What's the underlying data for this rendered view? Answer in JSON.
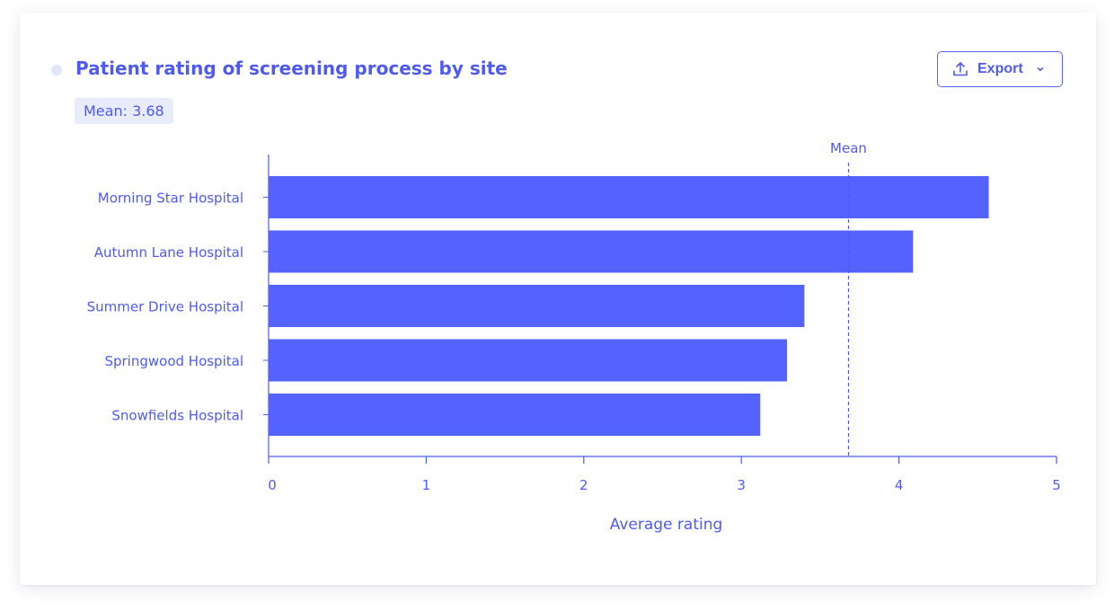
{
  "header": {
    "title": "Patient rating of screening process by site",
    "mean_badge": "Mean: 3.68",
    "export_label": "Export"
  },
  "colors": {
    "bar": "#5563fe",
    "accent": "#4f5bf0",
    "badge_bg": "#e9ecfd"
  },
  "chart_data": {
    "type": "bar",
    "orientation": "horizontal",
    "categories": [
      "Morning Star Hospital",
      "Autumn Lane Hospital",
      "Summer Drive Hospital",
      "Springwood Hospital",
      "Snowfields Hospital"
    ],
    "values": [
      4.57,
      4.09,
      3.4,
      3.29,
      3.12
    ],
    "xlabel": "Average rating",
    "ylabel": "",
    "xlim": [
      0,
      5
    ],
    "xticks": [
      0,
      1,
      2,
      3,
      4,
      5
    ],
    "reference_line": {
      "label": "Mean",
      "value": 3.68,
      "style": "dashed"
    },
    "grid": false,
    "legend": "none"
  }
}
